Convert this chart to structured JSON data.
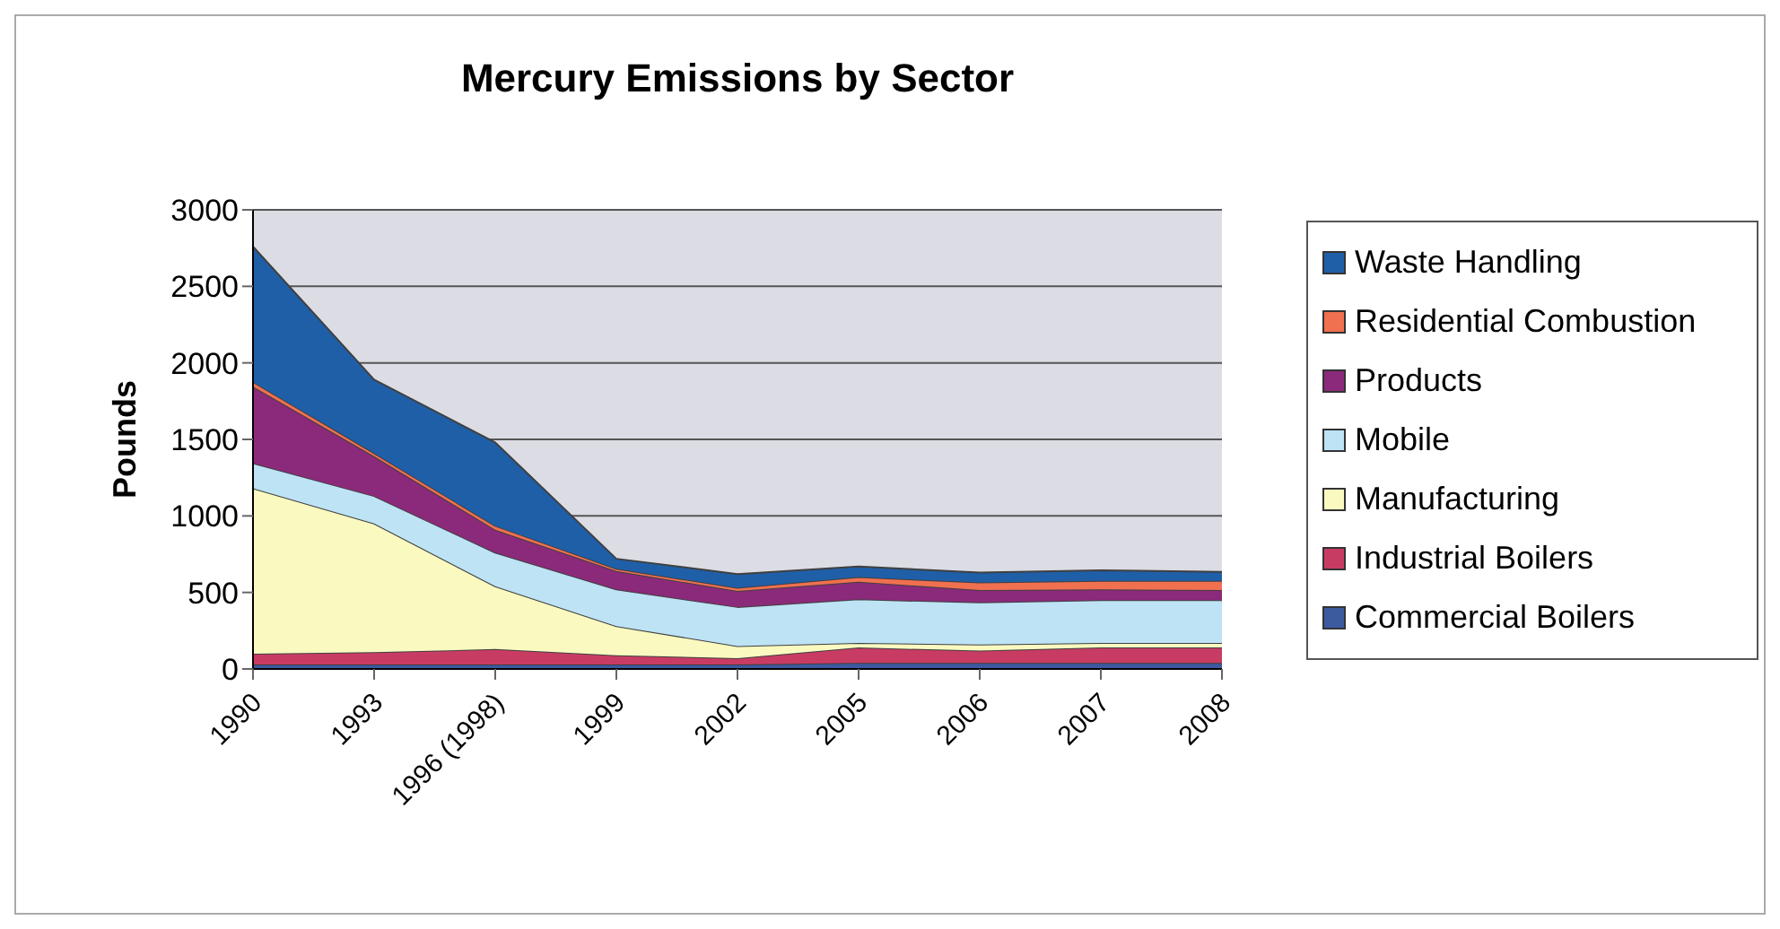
{
  "chart_data": {
    "type": "area",
    "title": "Mercury Emissions by Sector",
    "ylabel": "Pounds",
    "stacked": true,
    "grid": "y",
    "legend": "right",
    "categories": [
      "1990",
      "1993",
      "1996 (1998)",
      "1999",
      "2002",
      "2005",
      "2006",
      "2007",
      "2008"
    ],
    "ylim": [
      0,
      3000
    ],
    "yticks": [
      0,
      500,
      1000,
      1500,
      2000,
      2500,
      3000
    ],
    "series": [
      {
        "name": "Commercial Boilers",
        "color": "#3c5aa0",
        "values": [
          30,
          30,
          30,
          30,
          30,
          40,
          40,
          40,
          40
        ]
      },
      {
        "name": "Industrial Boilers",
        "color": "#c83c64",
        "values": [
          70,
          80,
          100,
          60,
          40,
          100,
          80,
          100,
          100
        ]
      },
      {
        "name": "Manufacturing",
        "color": "#fafac0",
        "values": [
          1080,
          840,
          410,
          190,
          80,
          30,
          40,
          30,
          30
        ]
      },
      {
        "name": "Mobile",
        "color": "#bde3f5",
        "values": [
          165,
          180,
          220,
          240,
          255,
          285,
          275,
          280,
          280
        ]
      },
      {
        "name": "Products",
        "color": "#8b2a7a",
        "values": [
          500,
          260,
          150,
          120,
          105,
          115,
          80,
          70,
          65
        ]
      },
      {
        "name": "Residential Combustion",
        "color": "#f07050",
        "values": [
          30,
          20,
          25,
          15,
          20,
          30,
          50,
          55,
          60
        ]
      },
      {
        "name": "Waste Handling",
        "color": "#1f5fa8",
        "values": [
          885,
          480,
          545,
          65,
          90,
          70,
          65,
          70,
          60
        ]
      }
    ]
  }
}
